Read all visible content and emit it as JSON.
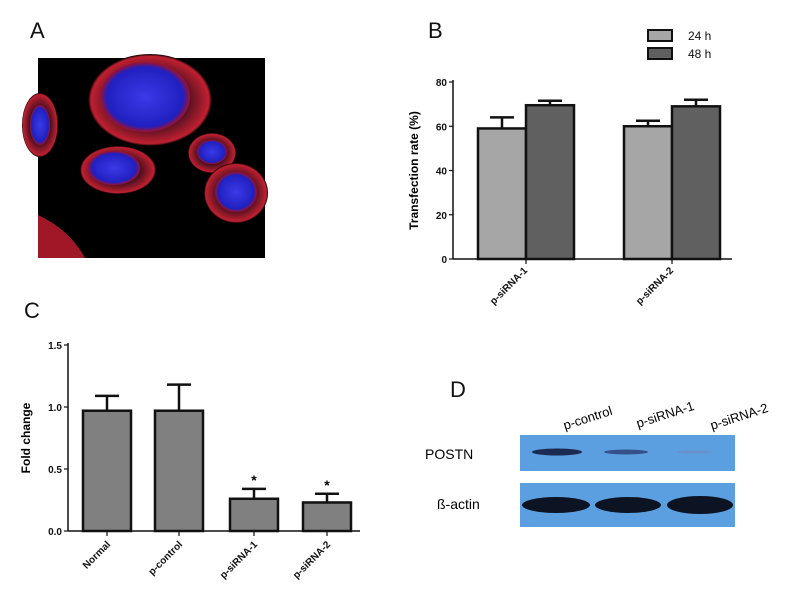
{
  "panels": {
    "a": {
      "label": "A"
    },
    "b": {
      "label": "B"
    },
    "c": {
      "label": "C"
    },
    "d": {
      "label": "D"
    }
  },
  "blot": {
    "lanes": [
      "p-control",
      "p-siRNA-1",
      "p-siRNA-2"
    ],
    "rows": [
      "POSTN",
      "ß-actin"
    ],
    "background_color": "#5b9fe0"
  },
  "chart_data": [
    {
      "type": "bar",
      "panel": "B",
      "title": "",
      "xlabel": "",
      "ylabel": "Transfection rate (%)",
      "categories": [
        "p-siRNA-1",
        "p-siRNA-2"
      ],
      "series": [
        {
          "name": "24 h",
          "values": [
            59,
            60
          ],
          "error_upper": [
            64,
            62.5
          ],
          "color": "#a6a6a6"
        },
        {
          "name": "48 h",
          "values": [
            69.5,
            69
          ],
          "error_upper": [
            71.5,
            72
          ],
          "color": "#606060"
        }
      ],
      "ylim": [
        0,
        80
      ],
      "yticks": [
        "0",
        "20",
        "40",
        "60",
        "80"
      ],
      "grid": false,
      "legend": "top-right"
    },
    {
      "type": "bar",
      "panel": "C",
      "title": "",
      "xlabel": "",
      "ylabel": "Fold change",
      "categories": [
        "Normal",
        "p-control",
        "p-siRNA-1",
        "p-siRNA-2"
      ],
      "values": [
        0.97,
        0.97,
        0.26,
        0.23
      ],
      "error_upper": [
        1.09,
        1.18,
        0.34,
        0.3
      ],
      "annotations": [
        "",
        "",
        "*",
        "*"
      ],
      "color": "#808080",
      "ylim": [
        0,
        1.5
      ],
      "yticks": [
        "0.0",
        "0.5",
        "1.0",
        "1.5"
      ],
      "grid": false
    }
  ]
}
